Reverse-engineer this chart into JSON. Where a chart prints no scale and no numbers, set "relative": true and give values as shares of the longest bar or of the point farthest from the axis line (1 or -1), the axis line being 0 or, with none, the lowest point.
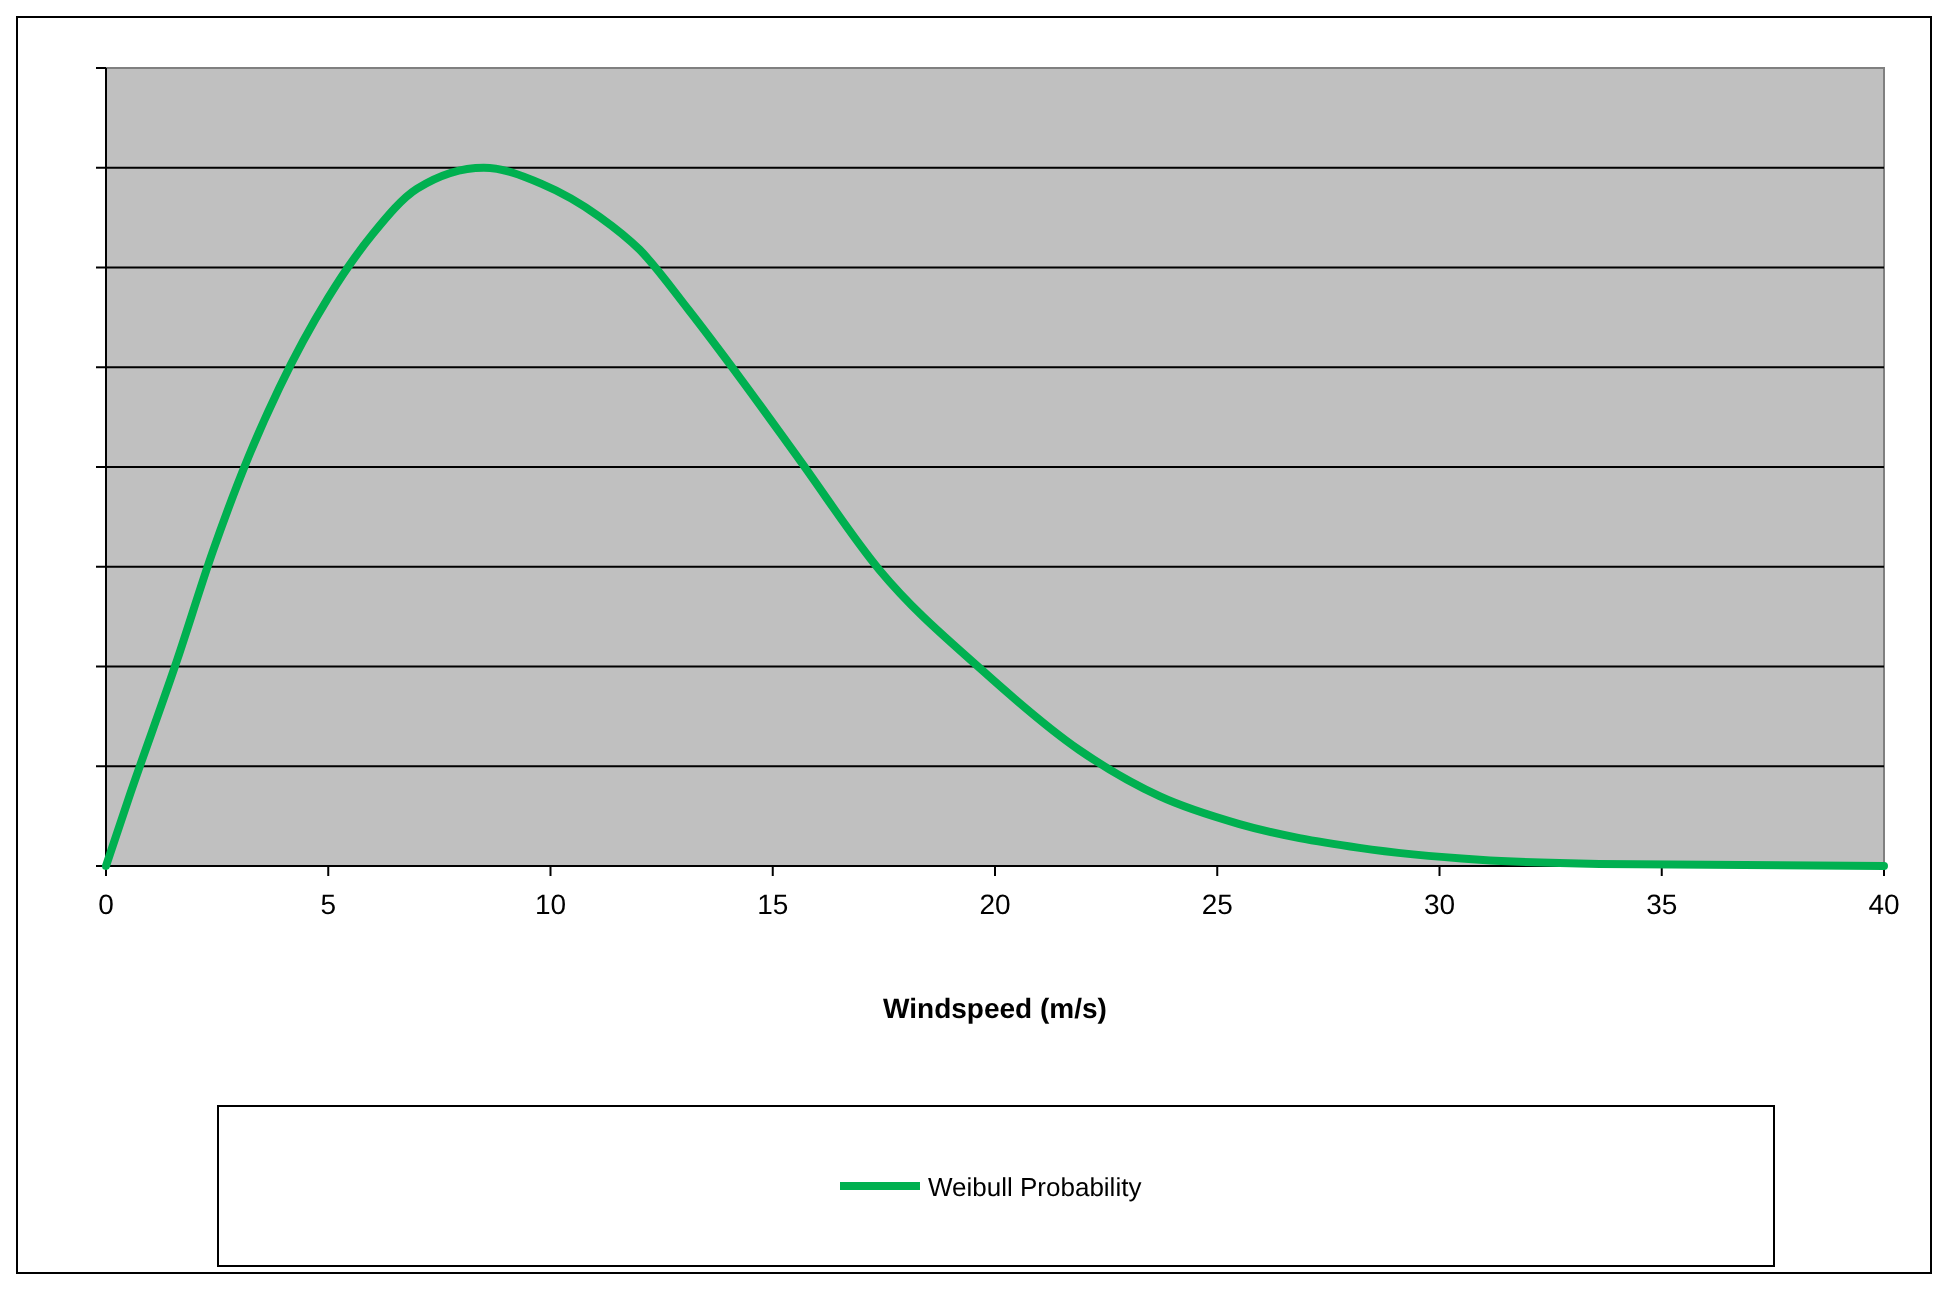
{
  "chart_data": {
    "type": "line",
    "relative": true,
    "xlabel": "Windspeed (m/s)",
    "xlim": [
      0,
      40
    ],
    "xticks": [
      0,
      5,
      10,
      15,
      20,
      25,
      30,
      35,
      40
    ],
    "grid": "y",
    "legend": "bottom",
    "marker": "none",
    "line_style": "solid",
    "series": [
      {
        "name": "Weibull Probability",
        "color": "#00b050",
        "x": [
          0,
          0.5,
          1.6,
          2.4,
          3.2,
          3.9,
          5,
          6,
          7,
          8.5,
          9.8,
          11.1,
          12,
          13.1,
          14.3,
          15.6,
          17.4,
          19.7,
          21.9,
          23.7,
          25.5,
          28.2,
          30.9,
          33.6,
          40
        ],
        "values": [
          0,
          0.095,
          0.295,
          0.45,
          0.585,
          0.685,
          0.814,
          0.905,
          0.97,
          1,
          0.977,
          0.93,
          0.883,
          0.797,
          0.696,
          0.582,
          0.424,
          0.281,
          0.166,
          0.1,
          0.06,
          0.026,
          0.009,
          0.003,
          0
        ]
      }
    ]
  }
}
